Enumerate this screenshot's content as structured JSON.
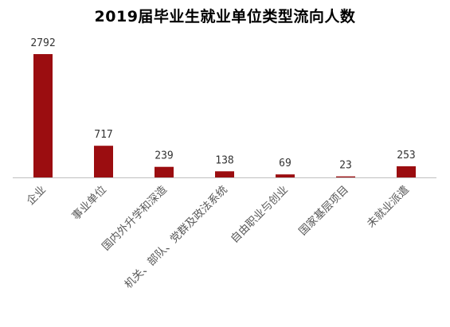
{
  "chart_data": {
    "type": "bar",
    "title": "2019届毕业生就业单位类型流向人数",
    "xlabel": "",
    "ylabel": "",
    "categories": [
      "企业",
      "事业单位",
      "国内外升学和深造",
      "机关、部队、党群及政法系统",
      "自由职业与创业",
      "国家基层项目",
      "未就业派遣"
    ],
    "values": [
      2792,
      717,
      239,
      138,
      69,
      23,
      253
    ],
    "ylim": [
      0,
      2792
    ],
    "grid": false,
    "legend": "none",
    "bar_color": "#9b0d10",
    "axis_color": "#bfbfbf"
  }
}
